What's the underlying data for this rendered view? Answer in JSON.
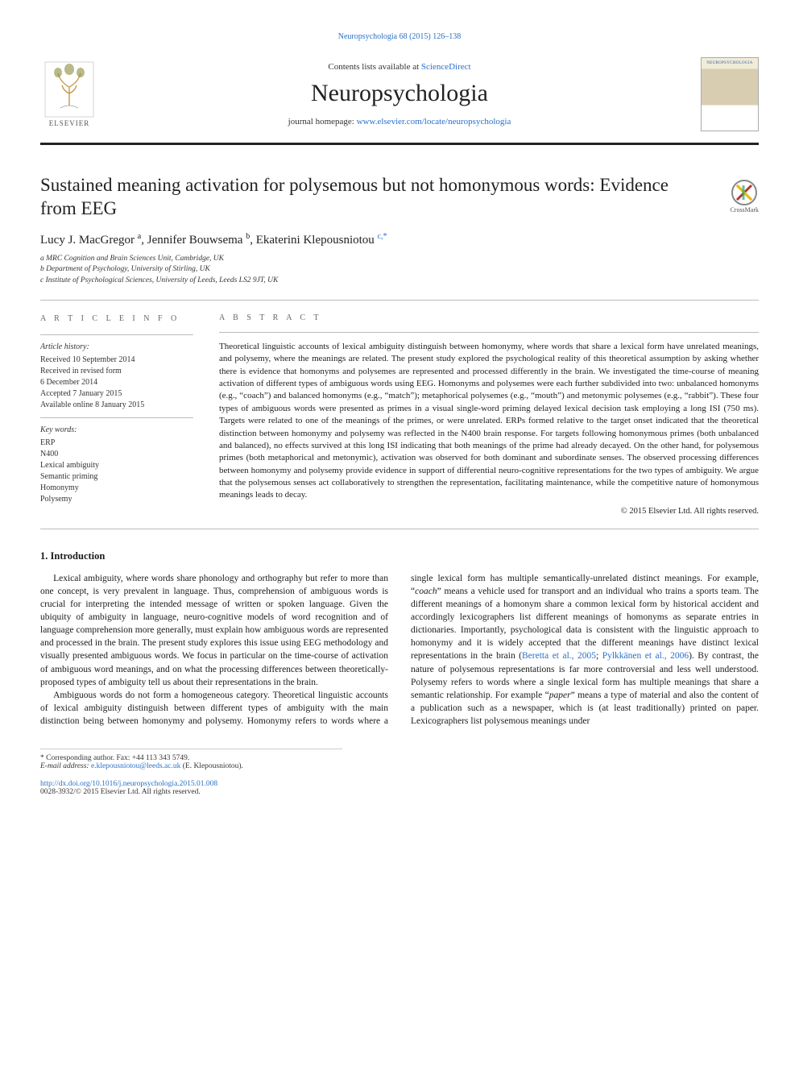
{
  "top_link": {
    "text": "Neuropsychologia 68 (2015) 126–138"
  },
  "header": {
    "contents_prefix": "Contents lists available at ",
    "contents_link": "ScienceDirect",
    "journal_name": "Neuropsychologia",
    "homepage_prefix": "journal homepage: ",
    "homepage_link": "www.elsevier.com/locate/neuropsychologia",
    "elsevier_label": "ELSEVIER"
  },
  "crossmark_label": "CrossMark",
  "title": "Sustained meaning activation for polysemous but not homonymous words: Evidence from EEG",
  "authors_html": "Lucy J. MacGregor <sup>a</sup>, Jennifer Bouwsema <sup>b</sup>, Ekaterini Klepousniotou <sup class=\"corr\">c,*</sup>",
  "affiliations": [
    "a MRC Cognition and Brain Sciences Unit, Cambridge, UK",
    "b Department of Psychology, University of Stirling, UK",
    "c Institute of Psychological Sciences, University of Leeds, Leeds LS2 9JT, UK"
  ],
  "sidebar": {
    "heading": "A R T I C L E  I N F O",
    "history_head": "Article history:",
    "history": [
      "Received 10 September 2014",
      "Received in revised form",
      "6 December 2014",
      "Accepted 7 January 2015",
      "Available online 8 January 2015"
    ],
    "keywords_head": "Key words:",
    "keywords": [
      "ERP",
      "N400",
      "Lexical ambiguity",
      "Semantic priming",
      "Homonymy",
      "Polysemy"
    ]
  },
  "abstract": {
    "heading": "A B S T R A C T",
    "text": "Theoretical linguistic accounts of lexical ambiguity distinguish between homonymy, where words that share a lexical form have unrelated meanings, and polysemy, where the meanings are related. The present study explored the psychological reality of this theoretical assumption by asking whether there is evidence that homonyms and polysemes are represented and processed differently in the brain. We investigated the time-course of meaning activation of different types of ambiguous words using EEG. Homonyms and polysemes were each further subdivided into two: unbalanced homonyms (e.g., “coach”) and balanced homonyms (e.g., “match”); metaphorical polysemes (e.g., “mouth”) and metonymic polysemes (e.g., “rabbit”). These four types of ambiguous words were presented as primes in a visual single-word priming delayed lexical decision task employing a long ISI (750 ms). Targets were related to one of the meanings of the primes, or were unrelated. ERPs formed relative to the target onset indicated that the theoretical distinction between homonymy and polysemy was reflected in the N400 brain response. For targets following homonymous primes (both unbalanced and balanced), no effects survived at this long ISI indicating that both meanings of the prime had already decayed. On the other hand, for polysemous primes (both metaphorical and metonymic), activation was observed for both dominant and subordinate senses. The observed processing differences between homonymy and polysemy provide evidence in support of differential neuro-cognitive representations for the two types of ambiguity. We argue that the polysemous senses act collaboratively to strengthen the representation, facilitating maintenance, while the competitive nature of homonymous meanings leads to decay.",
    "copyright": "© 2015 Elsevier Ltd. All rights reserved."
  },
  "section1_heading": "1.  Introduction",
  "body": {
    "p1": "Lexical ambiguity, where words share phonology and orthography but refer to more than one concept, is very prevalent in language. Thus, comprehension of ambiguous words is crucial for interpreting the intended message of written or spoken language. Given the ubiquity of ambiguity in language, neuro-cognitive models of word recognition and of language comprehension more generally, must explain how ambiguous words are represented and processed in the brain. The present study explores this issue using EEG methodology and visually presented ambiguous words. We focus in particular on the time-course of activation of ambiguous word meanings, and on what the processing differences between theoretically-proposed types of ambiguity tell us about their representations in the brain.",
    "p2_pre": "Ambiguous words do not form a homogeneous category. Theoretical linguistic accounts of lexical ambiguity distinguish between different types of ambiguity with the main distinction being between homonymy and polysemy. Homonymy refers to words where a single lexical form has multiple semantically-unrelated distinct meanings. For example, “",
    "p2_word1": "coach",
    "p2_mid1": "” means a vehicle used for transport and an individual who trains a sports team. The different meanings of a homonym share a common lexical form by historical accident and accordingly lexicographers list different meanings of homonyms as separate entries in dictionaries. Importantly, psychological data is consistent with the linguistic approach to homonymy and it is widely accepted that the different meanings have distinct lexical representations in the brain (",
    "p2_cite1": "Beretta et al., 2005",
    "p2_sep": "; ",
    "p2_cite2": "Pylkkänen et al., 2006",
    "p2_mid2": "). By contrast, the nature of polysemous representations is far more controversial and less well understood. Polysemy refers to words where a single lexical form has multiple meanings that share a semantic relationship. For example “",
    "p2_word2": "paper",
    "p2_post": "” means a type of material and also the content of a publication such as a newspaper, which is (at least traditionally) printed on paper. Lexicographers list polysemous meanings under"
  },
  "footnote": {
    "corr_label": "* Corresponding author. Fax: +44 113 343 5749.",
    "email_label": "E-mail address: ",
    "email": "e.klepousniotou@leeds.ac.uk",
    "email_suffix": " (E. Klepousniotou)."
  },
  "footer": {
    "doi": "http://dx.doi.org/10.1016/j.neuropsychologia.2015.01.008",
    "issn_line": "0028-3932/© 2015 Elsevier Ltd. All rights reserved."
  },
  "colors": {
    "link": "#2970c9",
    "rule": "#222222",
    "text": "#1a1a1a",
    "muted": "#666666"
  }
}
